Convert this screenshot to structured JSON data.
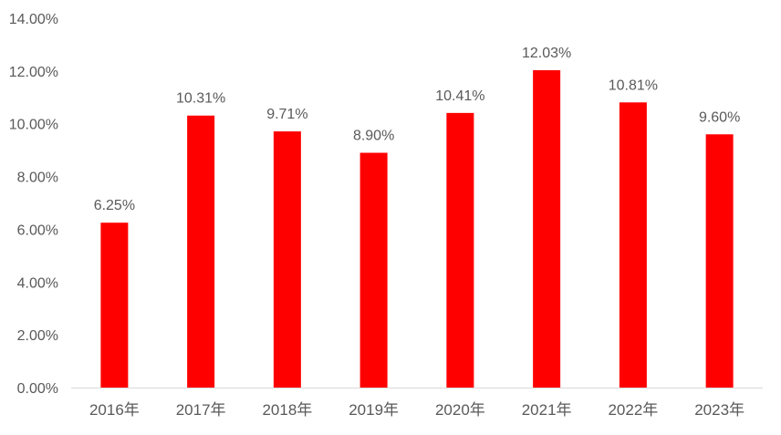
{
  "chart_data": {
    "type": "bar",
    "categories": [
      "2016年",
      "2017年",
      "2018年",
      "2019年",
      "2020年",
      "2021年",
      "2022年",
      "2023年"
    ],
    "series": [
      {
        "values": [
          6.25,
          10.31,
          9.71,
          8.9,
          10.41,
          12.03,
          10.81,
          9.6
        ],
        "labels": [
          "6.25%",
          "10.31%",
          "9.71%",
          "8.90%",
          "10.41%",
          "12.03%",
          "10.81%",
          "9.60%"
        ],
        "color": "#ff0000"
      }
    ],
    "y_ticks": [
      0,
      2,
      4,
      6,
      8,
      10,
      12,
      14
    ],
    "y_tick_labels": [
      "0.00%",
      "2.00%",
      "4.00%",
      "6.00%",
      "8.00%",
      "10.00%",
      "12.00%",
      "14.00%"
    ],
    "ylim": [
      0,
      14
    ],
    "grid": false,
    "legend": "none",
    "title": "",
    "xlabel": "",
    "ylabel": "",
    "axis_color": "#d9d9d9",
    "text_color": "#595959"
  }
}
